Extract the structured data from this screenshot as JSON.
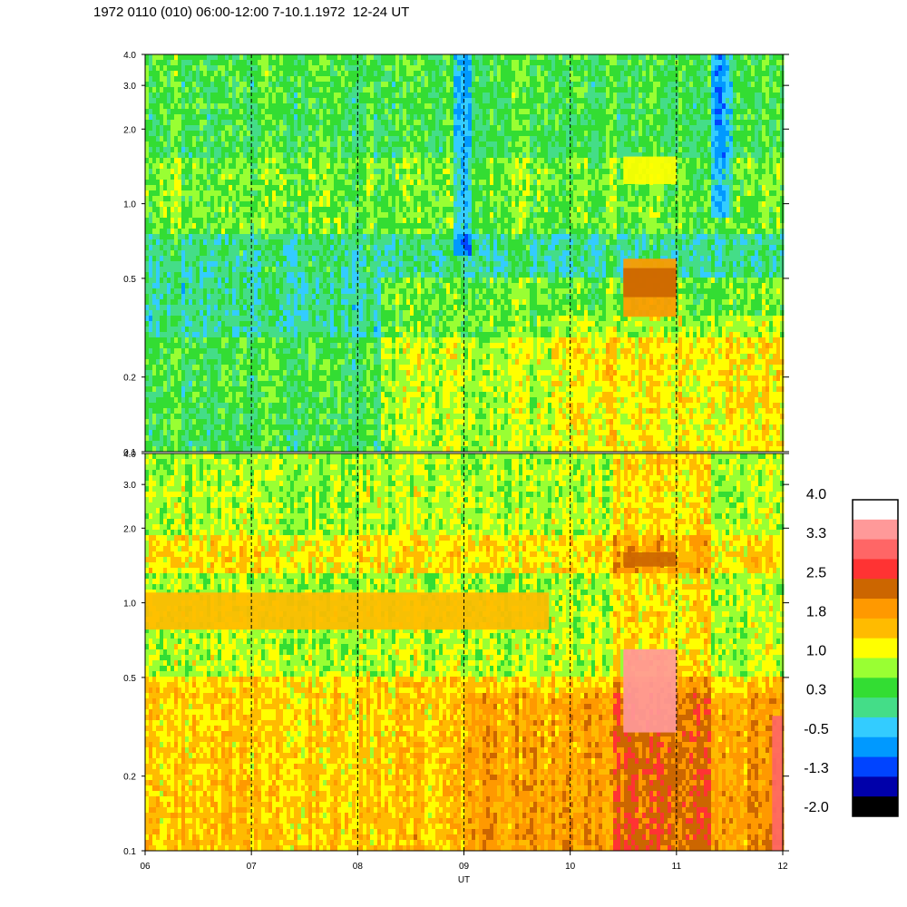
{
  "title": "1972 0110 (010) 06:00-12:00 7-10.1.1972  12-24 UT",
  "chart_data": {
    "type": "heatmap",
    "title": "1972 0110 (010) 06:00-12:00 7-10.1.1972  12-24 UT",
    "xlabel": "UT",
    "ylabel": "",
    "x_range": [
      6,
      12
    ],
    "x_ticks": [
      "06",
      "07",
      "08",
      "09",
      "10",
      "11",
      "12"
    ],
    "x_gridlines": [
      7,
      8,
      9,
      10,
      11
    ],
    "y_scale": "log",
    "y_range": [
      0.1,
      4.0
    ],
    "y_ticks": [
      "0.1",
      "0.2",
      "0.5",
      "1.0",
      "2.0",
      "3.0",
      "4.0"
    ],
    "panels": [
      {
        "name": "upper",
        "features": [
          {
            "x0": 10.5,
            "x1": 11.0,
            "y0": 1.2,
            "y1": 1.55,
            "level": 1.3
          },
          {
            "x0": 10.5,
            "x1": 11.0,
            "y0": 0.35,
            "y1": 0.6,
            "level": 1.9
          },
          {
            "x0": 10.5,
            "x1": 11.0,
            "y0": 0.42,
            "y1": 0.55,
            "level": 2.4
          }
        ]
      },
      {
        "name": "lower",
        "features": [
          {
            "x0": 6.0,
            "x1": 9.8,
            "y0": 0.78,
            "y1": 1.1,
            "level": 1.5
          },
          {
            "x0": 10.5,
            "x1": 11.0,
            "y0": 1.4,
            "y1": 1.6,
            "level": 2.4
          },
          {
            "x0": 10.5,
            "x1": 11.0,
            "y0": 0.3,
            "y1": 0.65,
            "level": 3.5
          },
          {
            "x0": 11.9,
            "x1": 12.0,
            "y0": 0.1,
            "y1": 0.35,
            "level": 3.2
          }
        ]
      }
    ],
    "colorbar": {
      "labels": [
        "4.0",
        "3.3",
        "2.5",
        "1.8",
        "1.0",
        "0.3",
        "-0.5",
        "-1.3",
        "-2.0"
      ],
      "colors": [
        "#ffffff",
        "#ff9999",
        "#ff6666",
        "#ff3333",
        "#cc6600",
        "#ff9900",
        "#ffbb00",
        "#ffff00",
        "#99ff33",
        "#33dd33",
        "#44dd88",
        "#33ccff",
        "#0099ff",
        "#0044ff",
        "#0000aa",
        "#000000"
      ]
    }
  }
}
